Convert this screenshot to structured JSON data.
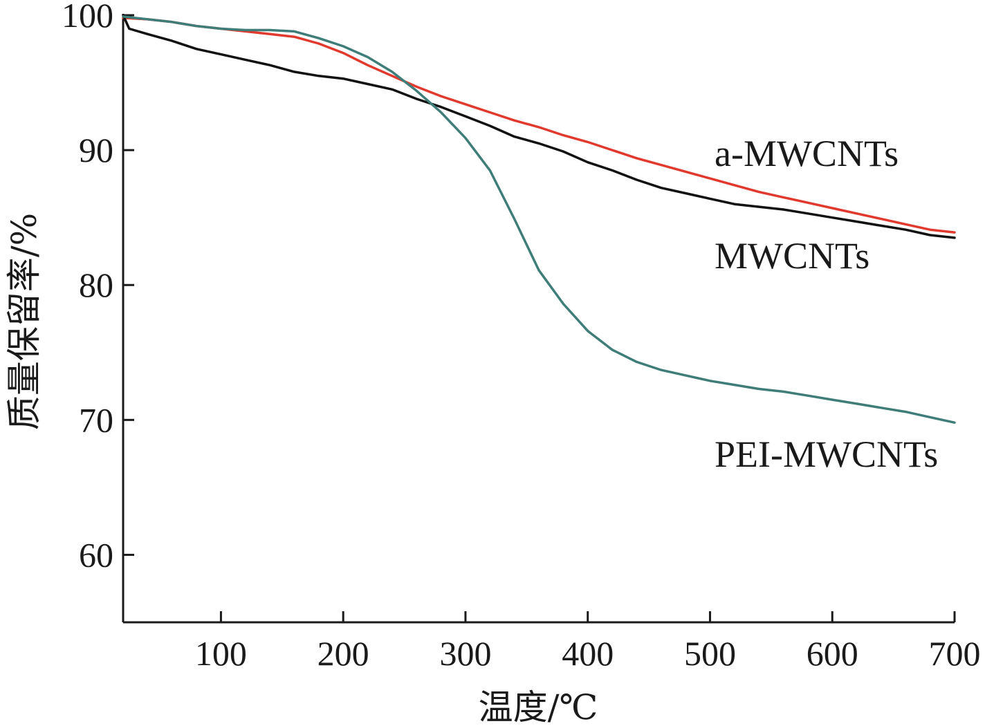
{
  "chart_data": {
    "type": "line",
    "title": "",
    "xlabel": "温度/℃",
    "ylabel": "质量保留率/%",
    "xlim": [
      20,
      700
    ],
    "ylim": [
      55,
      100
    ],
    "xticks": [
      100,
      200,
      300,
      400,
      500,
      600,
      700
    ],
    "yticks": [
      60,
      70,
      80,
      90,
      100
    ],
    "grid": false,
    "legend": "inline labels at right",
    "series": [
      {
        "name": "a-MWCNTs",
        "color": "#e03a2e",
        "x": [
          20,
          40,
          60,
          80,
          100,
          120,
          140,
          160,
          180,
          200,
          220,
          240,
          260,
          280,
          300,
          320,
          340,
          360,
          380,
          400,
          420,
          440,
          460,
          480,
          500,
          520,
          540,
          560,
          580,
          600,
          620,
          640,
          660,
          680,
          700
        ],
        "y": [
          99.8,
          99.7,
          99.5,
          99.2,
          99.0,
          98.8,
          98.6,
          98.4,
          97.9,
          97.2,
          96.3,
          95.5,
          94.7,
          94.0,
          93.4,
          92.8,
          92.2,
          91.7,
          91.1,
          90.6,
          90.0,
          89.4,
          88.9,
          88.4,
          87.9,
          87.4,
          86.9,
          86.5,
          86.1,
          85.7,
          85.3,
          84.9,
          84.5,
          84.1,
          83.9
        ]
      },
      {
        "name": "MWCNTs",
        "color": "#111111",
        "x": [
          20,
          25,
          40,
          60,
          80,
          100,
          120,
          140,
          160,
          180,
          200,
          220,
          240,
          260,
          280,
          300,
          320,
          340,
          360,
          380,
          400,
          420,
          440,
          460,
          480,
          500,
          520,
          540,
          560,
          580,
          600,
          620,
          640,
          660,
          680,
          700
        ],
        "y": [
          100.0,
          99.0,
          98.6,
          98.1,
          97.5,
          97.1,
          96.7,
          96.3,
          95.8,
          95.5,
          95.3,
          94.9,
          94.5,
          93.8,
          93.2,
          92.5,
          91.8,
          91.0,
          90.5,
          89.9,
          89.1,
          88.5,
          87.8,
          87.2,
          86.8,
          86.4,
          86.0,
          85.8,
          85.6,
          85.3,
          85.0,
          84.7,
          84.4,
          84.1,
          83.7,
          83.5
        ]
      },
      {
        "name": "PEI-MWCNTs",
        "color": "#3f7d78",
        "x": [
          20,
          40,
          60,
          80,
          100,
          120,
          140,
          160,
          180,
          200,
          220,
          240,
          260,
          280,
          300,
          320,
          340,
          360,
          380,
          400,
          420,
          440,
          460,
          480,
          500,
          520,
          540,
          560,
          580,
          600,
          620,
          640,
          660,
          680,
          700
        ],
        "y": [
          99.9,
          99.7,
          99.5,
          99.2,
          99.0,
          98.9,
          98.9,
          98.8,
          98.3,
          97.7,
          96.9,
          95.8,
          94.4,
          92.8,
          90.9,
          88.5,
          84.9,
          81.1,
          78.6,
          76.6,
          75.2,
          74.3,
          73.7,
          73.3,
          72.9,
          72.6,
          72.3,
          72.1,
          71.8,
          71.5,
          71.2,
          70.9,
          70.6,
          70.2,
          69.8
        ]
      }
    ]
  }
}
